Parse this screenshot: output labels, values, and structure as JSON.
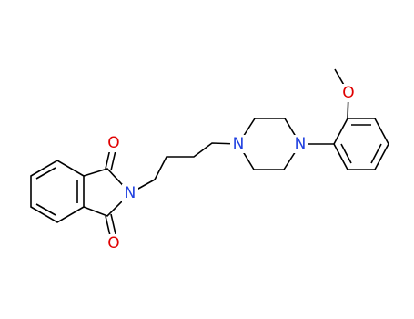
{
  "atoms": [
    {
      "label": "O"
    },
    {
      "label": "O"
    },
    {
      "label": "N"
    },
    {
      "label": "N"
    },
    {
      "label": "N"
    },
    {
      "label": "O"
    }
  ]
}
